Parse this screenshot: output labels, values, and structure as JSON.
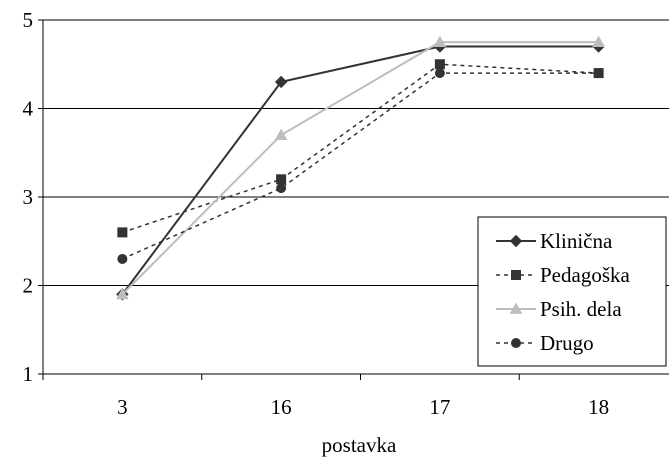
{
  "chart_data": {
    "type": "line",
    "categories": [
      "3",
      "16",
      "17",
      "18"
    ],
    "xlabel": "postavka",
    "ylabel": "",
    "title": "",
    "ylim": [
      1,
      5
    ],
    "yticks": [
      "1",
      "2",
      "3",
      "4",
      "5"
    ],
    "grid": "horizontal",
    "legend_position": "right",
    "series": [
      {
        "name": "Klinična",
        "values": [
          1.9,
          4.3,
          4.7,
          4.7
        ],
        "color": "#333333",
        "marker": "diamond",
        "dash": "solid"
      },
      {
        "name": "Pedagoška",
        "values": [
          2.6,
          3.2,
          4.5,
          4.4
        ],
        "color": "#333333",
        "marker": "square",
        "dash": "dashed"
      },
      {
        "name": "Psih. dela",
        "values": [
          1.9,
          3.7,
          4.75,
          4.75
        ],
        "color": "#bdbdbd",
        "marker": "triangle",
        "dash": "solid"
      },
      {
        "name": "Drugo",
        "values": [
          2.3,
          3.1,
          4.4,
          4.4
        ],
        "color": "#333333",
        "marker": "circle",
        "dash": "dashed"
      }
    ]
  }
}
